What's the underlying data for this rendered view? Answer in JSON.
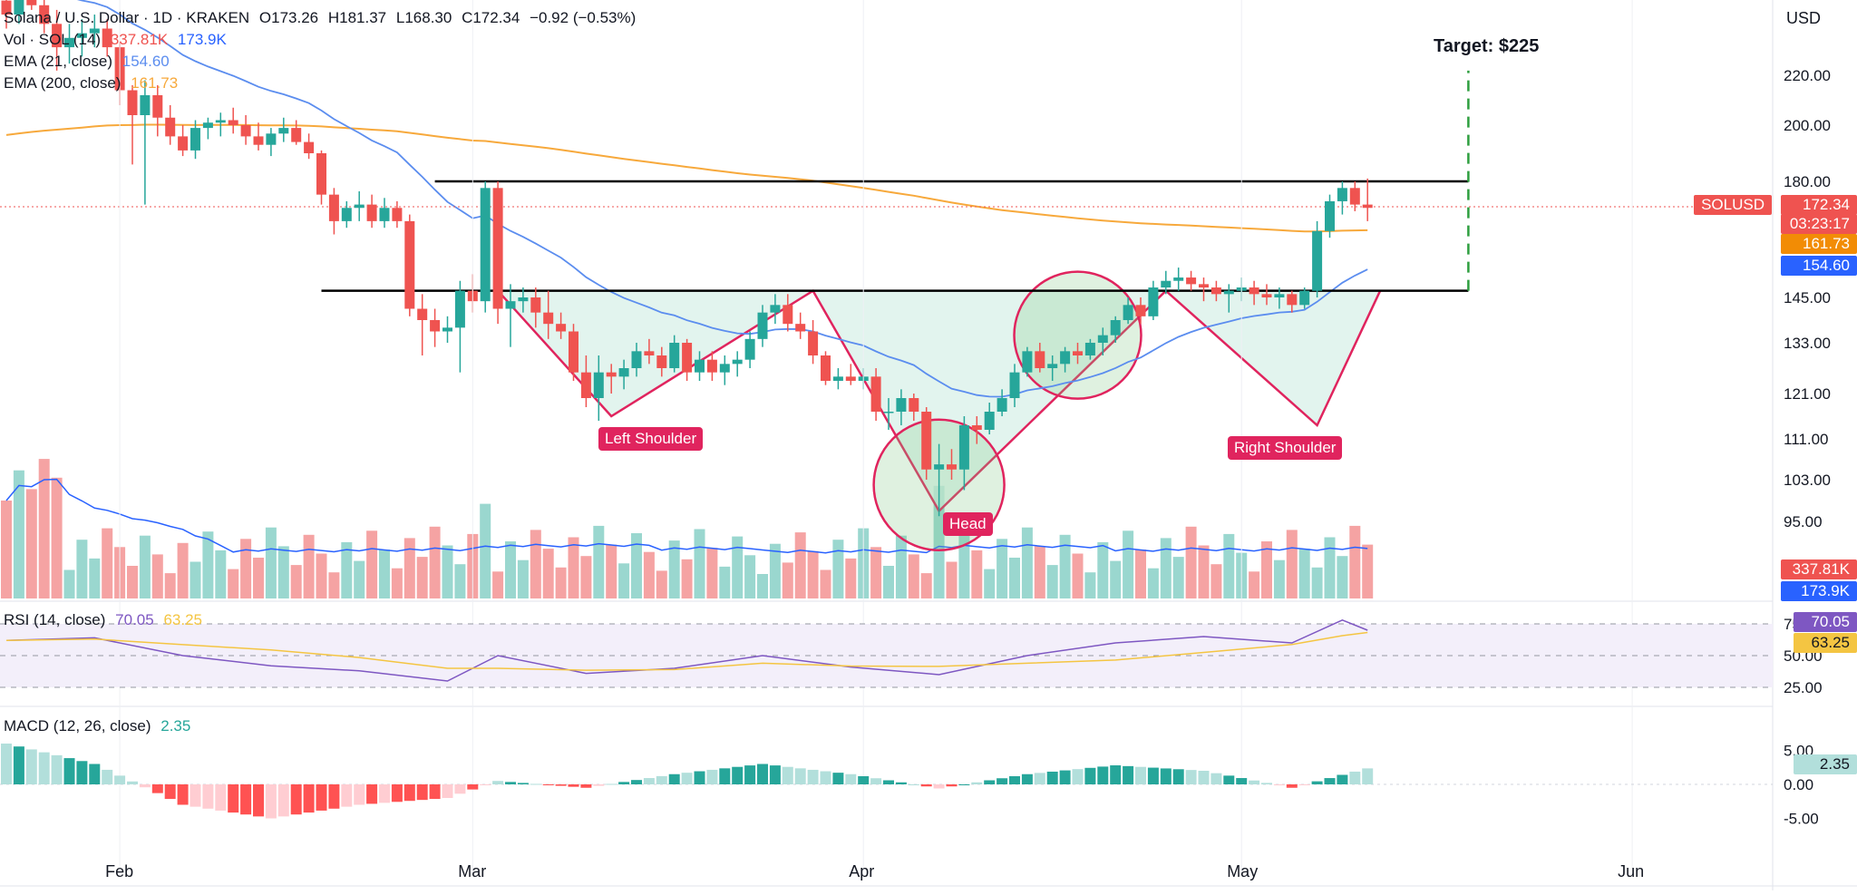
{
  "header": {
    "symbol_line": "Solana / U.S. Dollar · 1D · KRAKEN",
    "open": "O173.26",
    "high": "H181.37",
    "low": "L168.30",
    "close": "C172.34",
    "change": "−0.92 (−0.53%)",
    "vol_label": "Vol · SOL (14)",
    "vol_value1": "337.81K",
    "vol_value2": "173.9K",
    "ema21_label": "EMA (21, close)",
    "ema21_value": "154.60",
    "ema200_label": "EMA (200, close)",
    "ema200_value": "161.73",
    "currency": "USD"
  },
  "annotations": {
    "target": "Target: $225",
    "left_shoulder": "Left Shoulder",
    "head": "Head",
    "right_shoulder": "Right Shoulder"
  },
  "price_badges": {
    "symbol": "SOLUSD",
    "last": "172.34",
    "countdown": "03:23:17",
    "ema200": "161.73",
    "ema21": "154.60",
    "vol": "337.81K",
    "vol_ma": "173.9K"
  },
  "rsi": {
    "label": "RSI (14, close)",
    "value": "70.05",
    "ma": "63.25"
  },
  "macd": {
    "label": "MACD (12, 26, close)",
    "value": "2.35"
  },
  "colors": {
    "up": "#26a69a",
    "down": "#ef5350",
    "ema21": "#5b8def",
    "ema200": "#f7a93c",
    "pattern_fill": "#d6efe7",
    "pattern_line": "#e0245e",
    "rsi": "#7e57c2",
    "rsi_ma": "#f4c542"
  },
  "chart_data": {
    "type": "line",
    "title": "Solana / U.S. Dollar · 1D · KRAKEN",
    "x_ticks": [
      "Feb",
      "Mar",
      "Apr",
      "May",
      "Jun"
    ],
    "y_ticks": [
      95,
      103,
      111,
      121,
      133,
      145,
      180,
      200,
      220
    ],
    "ylabel": "USD",
    "price_levels": {
      "neckline": 147,
      "resistance": 180,
      "target": 225
    },
    "pattern_points": [
      {
        "name": "neck-start",
        "date": "2025-03-03",
        "price": 147
      },
      {
        "name": "left-shoulder",
        "date": "2025-03-12",
        "price": 116
      },
      {
        "name": "shoulder-peak",
        "date": "2025-03-28",
        "price": 147
      },
      {
        "name": "head",
        "date": "2025-04-07",
        "price": 97
      },
      {
        "name": "neck-mid",
        "date": "2025-04-25",
        "price": 147
      },
      {
        "name": "right-shoulder",
        "date": "2025-05-07",
        "price": 114
      },
      {
        "name": "neck-end",
        "date": "2025-05-12",
        "price": 147
      }
    ],
    "candles": [
      {
        "d": "2025-01-23",
        "o": 252,
        "h": 258,
        "l": 240,
        "c": 246
      },
      {
        "d": "2025-01-24",
        "o": 246,
        "h": 260,
        "l": 242,
        "c": 254
      },
      {
        "d": "2025-01-25",
        "o": 254,
        "h": 262,
        "l": 248,
        "c": 250
      },
      {
        "d": "2025-01-26",
        "o": 250,
        "h": 255,
        "l": 238,
        "c": 242
      },
      {
        "d": "2025-01-27",
        "o": 242,
        "h": 248,
        "l": 222,
        "c": 232
      },
      {
        "d": "2025-01-28",
        "o": 232,
        "h": 242,
        "l": 225,
        "c": 236
      },
      {
        "d": "2025-01-29",
        "o": 236,
        "h": 244,
        "l": 228,
        "c": 238
      },
      {
        "d": "2025-01-30",
        "o": 238,
        "h": 246,
        "l": 232,
        "c": 240
      },
      {
        "d": "2025-01-31",
        "o": 240,
        "h": 244,
        "l": 228,
        "c": 232
      },
      {
        "d": "2025-02-01",
        "o": 232,
        "h": 234,
        "l": 208,
        "c": 214
      },
      {
        "d": "2025-02-02",
        "o": 214,
        "h": 216,
        "l": 186,
        "c": 204
      },
      {
        "d": "2025-02-03",
        "o": 204,
        "h": 218,
        "l": 173,
        "c": 212
      },
      {
        "d": "2025-02-04",
        "o": 212,
        "h": 216,
        "l": 196,
        "c": 203
      },
      {
        "d": "2025-02-05",
        "o": 203,
        "h": 208,
        "l": 193,
        "c": 196
      },
      {
        "d": "2025-02-06",
        "o": 196,
        "h": 200,
        "l": 189,
        "c": 191
      },
      {
        "d": "2025-02-07",
        "o": 191,
        "h": 202,
        "l": 188,
        "c": 199
      },
      {
        "d": "2025-02-08",
        "o": 199,
        "h": 203,
        "l": 195,
        "c": 201
      },
      {
        "d": "2025-02-09",
        "o": 201,
        "h": 205,
        "l": 196,
        "c": 202
      },
      {
        "d": "2025-02-10",
        "o": 202,
        "h": 207,
        "l": 197,
        "c": 200
      },
      {
        "d": "2025-02-11",
        "o": 200,
        "h": 204,
        "l": 193,
        "c": 196
      },
      {
        "d": "2025-02-12",
        "o": 196,
        "h": 201,
        "l": 191,
        "c": 193
      },
      {
        "d": "2025-02-13",
        "o": 193,
        "h": 199,
        "l": 189,
        "c": 197
      },
      {
        "d": "2025-02-14",
        "o": 197,
        "h": 203,
        "l": 194,
        "c": 199
      },
      {
        "d": "2025-02-15",
        "o": 199,
        "h": 202,
        "l": 193,
        "c": 194
      },
      {
        "d": "2025-02-16",
        "o": 194,
        "h": 197,
        "l": 188,
        "c": 190
      },
      {
        "d": "2025-02-17",
        "o": 190,
        "h": 191,
        "l": 173,
        "c": 176
      },
      {
        "d": "2025-02-18",
        "o": 176,
        "h": 178,
        "l": 164,
        "c": 168
      },
      {
        "d": "2025-02-19",
        "o": 168,
        "h": 174,
        "l": 166,
        "c": 172
      },
      {
        "d": "2025-02-20",
        "o": 172,
        "h": 177,
        "l": 168,
        "c": 173
      },
      {
        "d": "2025-02-21",
        "o": 173,
        "h": 176,
        "l": 166,
        "c": 168
      },
      {
        "d": "2025-02-22",
        "o": 168,
        "h": 175,
        "l": 166,
        "c": 172
      },
      {
        "d": "2025-02-23",
        "o": 172,
        "h": 174,
        "l": 166,
        "c": 168
      },
      {
        "d": "2025-02-24",
        "o": 168,
        "h": 170,
        "l": 140,
        "c": 142
      },
      {
        "d": "2025-02-25",
        "o": 142,
        "h": 146,
        "l": 130,
        "c": 139
      },
      {
        "d": "2025-02-26",
        "o": 139,
        "h": 142,
        "l": 132,
        "c": 136
      },
      {
        "d": "2025-02-27",
        "o": 136,
        "h": 140,
        "l": 133,
        "c": 137
      },
      {
        "d": "2025-02-28",
        "o": 137,
        "h": 150,
        "l": 126,
        "c": 147
      },
      {
        "d": "2025-03-01",
        "o": 147,
        "h": 152,
        "l": 141,
        "c": 144
      },
      {
        "d": "2025-03-02",
        "o": 144,
        "h": 180,
        "l": 141,
        "c": 178
      },
      {
        "d": "2025-03-03",
        "o": 178,
        "h": 180,
        "l": 138,
        "c": 142
      },
      {
        "d": "2025-03-04",
        "o": 142,
        "h": 149,
        "l": 132,
        "c": 144
      },
      {
        "d": "2025-03-05",
        "o": 144,
        "h": 148,
        "l": 141,
        "c": 145
      },
      {
        "d": "2025-03-06",
        "o": 145,
        "h": 148,
        "l": 137,
        "c": 141
      },
      {
        "d": "2025-03-07",
        "o": 141,
        "h": 147,
        "l": 134,
        "c": 138
      },
      {
        "d": "2025-03-08",
        "o": 138,
        "h": 141,
        "l": 134,
        "c": 136
      },
      {
        "d": "2025-03-09",
        "o": 136,
        "h": 138,
        "l": 124,
        "c": 126
      },
      {
        "d": "2025-03-10",
        "o": 126,
        "h": 130,
        "l": 118,
        "c": 120
      },
      {
        "d": "2025-03-11",
        "o": 120,
        "h": 130,
        "l": 115,
        "c": 126
      },
      {
        "d": "2025-03-12",
        "o": 126,
        "h": 128,
        "l": 121,
        "c": 125
      },
      {
        "d": "2025-03-13",
        "o": 125,
        "h": 129,
        "l": 122,
        "c": 127
      },
      {
        "d": "2025-03-14",
        "o": 127,
        "h": 133,
        "l": 125,
        "c": 131
      },
      {
        "d": "2025-03-15",
        "o": 131,
        "h": 134,
        "l": 128,
        "c": 130
      },
      {
        "d": "2025-03-16",
        "o": 130,
        "h": 132,
        "l": 125,
        "c": 127
      },
      {
        "d": "2025-03-17",
        "o": 127,
        "h": 135,
        "l": 126,
        "c": 133
      },
      {
        "d": "2025-03-18",
        "o": 133,
        "h": 134,
        "l": 124,
        "c": 126
      },
      {
        "d": "2025-03-19",
        "o": 126,
        "h": 131,
        "l": 124,
        "c": 129
      },
      {
        "d": "2025-03-20",
        "o": 129,
        "h": 131,
        "l": 124,
        "c": 126
      },
      {
        "d": "2025-03-21",
        "o": 126,
        "h": 130,
        "l": 123,
        "c": 128
      },
      {
        "d": "2025-03-22",
        "o": 128,
        "h": 131,
        "l": 125,
        "c": 129
      },
      {
        "d": "2025-03-23",
        "o": 129,
        "h": 136,
        "l": 127,
        "c": 134
      },
      {
        "d": "2025-03-24",
        "o": 134,
        "h": 143,
        "l": 132,
        "c": 141
      },
      {
        "d": "2025-03-25",
        "o": 141,
        "h": 146,
        "l": 138,
        "c": 143
      },
      {
        "d": "2025-03-26",
        "o": 143,
        "h": 146,
        "l": 136,
        "c": 138
      },
      {
        "d": "2025-03-27",
        "o": 138,
        "h": 141,
        "l": 134,
        "c": 136
      },
      {
        "d": "2025-03-28",
        "o": 136,
        "h": 139,
        "l": 128,
        "c": 130
      },
      {
        "d": "2025-03-29",
        "o": 130,
        "h": 131,
        "l": 123,
        "c": 124
      },
      {
        "d": "2025-03-30",
        "o": 124,
        "h": 127,
        "l": 122,
        "c": 125
      },
      {
        "d": "2025-03-31",
        "o": 125,
        "h": 128,
        "l": 123,
        "c": 124
      },
      {
        "d": "2025-04-01",
        "o": 124,
        "h": 127,
        "l": 122,
        "c": 125
      },
      {
        "d": "2025-04-02",
        "o": 125,
        "h": 127,
        "l": 115,
        "c": 117
      },
      {
        "d": "2025-04-03",
        "o": 117,
        "h": 120,
        "l": 113,
        "c": 117
      },
      {
        "d": "2025-04-04",
        "o": 117,
        "h": 122,
        "l": 114,
        "c": 120
      },
      {
        "d": "2025-04-05",
        "o": 120,
        "h": 121,
        "l": 115,
        "c": 117
      },
      {
        "d": "2025-04-06",
        "o": 117,
        "h": 118,
        "l": 103,
        "c": 105
      },
      {
        "d": "2025-04-07",
        "o": 105,
        "h": 110,
        "l": 96,
        "c": 106
      },
      {
        "d": "2025-04-08",
        "o": 106,
        "h": 109,
        "l": 103,
        "c": 105
      },
      {
        "d": "2025-04-09",
        "o": 105,
        "h": 116,
        "l": 101,
        "c": 114
      },
      {
        "d": "2025-04-10",
        "o": 114,
        "h": 116,
        "l": 110,
        "c": 113
      },
      {
        "d": "2025-04-11",
        "o": 113,
        "h": 119,
        "l": 112,
        "c": 117
      },
      {
        "d": "2025-04-12",
        "o": 117,
        "h": 122,
        "l": 116,
        "c": 120
      },
      {
        "d": "2025-04-13",
        "o": 120,
        "h": 128,
        "l": 118,
        "c": 126
      },
      {
        "d": "2025-04-14",
        "o": 126,
        "h": 132,
        "l": 125,
        "c": 131
      },
      {
        "d": "2025-04-15",
        "o": 131,
        "h": 133,
        "l": 126,
        "c": 127
      },
      {
        "d": "2025-04-16",
        "o": 127,
        "h": 130,
        "l": 124,
        "c": 128
      },
      {
        "d": "2025-04-17",
        "o": 128,
        "h": 132,
        "l": 126,
        "c": 131
      },
      {
        "d": "2025-04-18",
        "o": 131,
        "h": 133,
        "l": 128,
        "c": 130
      },
      {
        "d": "2025-04-19",
        "o": 130,
        "h": 134,
        "l": 129,
        "c": 133
      },
      {
        "d": "2025-04-20",
        "o": 133,
        "h": 137,
        "l": 130,
        "c": 135
      },
      {
        "d": "2025-04-21",
        "o": 135,
        "h": 140,
        "l": 133,
        "c": 139
      },
      {
        "d": "2025-04-22",
        "o": 139,
        "h": 145,
        "l": 138,
        "c": 143
      },
      {
        "d": "2025-04-23",
        "o": 143,
        "h": 145,
        "l": 138,
        "c": 140
      },
      {
        "d": "2025-04-24",
        "o": 140,
        "h": 150,
        "l": 139,
        "c": 148
      },
      {
        "d": "2025-04-25",
        "o": 148,
        "h": 153,
        "l": 146,
        "c": 150
      },
      {
        "d": "2025-04-26",
        "o": 150,
        "h": 154,
        "l": 147,
        "c": 151
      },
      {
        "d": "2025-04-27",
        "o": 151,
        "h": 153,
        "l": 147,
        "c": 149
      },
      {
        "d": "2025-04-28",
        "o": 149,
        "h": 151,
        "l": 144,
        "c": 148
      },
      {
        "d": "2025-04-29",
        "o": 148,
        "h": 150,
        "l": 144,
        "c": 146
      },
      {
        "d": "2025-04-30",
        "o": 146,
        "h": 149,
        "l": 141,
        "c": 147
      },
      {
        "d": "2025-05-01",
        "o": 147,
        "h": 151,
        "l": 144,
        "c": 148
      },
      {
        "d": "2025-05-02",
        "o": 148,
        "h": 150,
        "l": 143,
        "c": 146
      },
      {
        "d": "2025-05-03",
        "o": 146,
        "h": 149,
        "l": 143,
        "c": 145
      },
      {
        "d": "2025-05-04",
        "o": 145,
        "h": 148,
        "l": 142,
        "c": 146
      },
      {
        "d": "2025-05-05",
        "o": 146,
        "h": 147,
        "l": 141,
        "c": 143
      },
      {
        "d": "2025-05-06",
        "o": 143,
        "h": 148,
        "l": 142,
        "c": 147
      },
      {
        "d": "2025-05-07",
        "o": 147,
        "h": 168,
        "l": 145,
        "c": 165
      },
      {
        "d": "2025-05-08",
        "o": 165,
        "h": 176,
        "l": 163,
        "c": 174
      },
      {
        "d": "2025-05-09",
        "o": 174,
        "h": 180,
        "l": 170,
        "c": 178
      },
      {
        "d": "2025-05-10",
        "o": 178,
        "h": 180,
        "l": 171,
        "c": 173
      },
      {
        "d": "2025-05-11",
        "o": 173,
        "h": 181,
        "l": 168,
        "c": 172
      }
    ],
    "volume_axis": [
      "337.81K",
      "173.9K"
    ],
    "rsi_ticks": [
      75,
      50,
      25
    ],
    "rsi_series": [
      {
        "d": "2025-01-23",
        "v": 62
      },
      {
        "d": "2025-01-30",
        "v": 64
      },
      {
        "d": "2025-02-06",
        "v": 50
      },
      {
        "d": "2025-02-13",
        "v": 42
      },
      {
        "d": "2025-02-20",
        "v": 38
      },
      {
        "d": "2025-02-27",
        "v": 30
      },
      {
        "d": "2025-03-03",
        "v": 50
      },
      {
        "d": "2025-03-10",
        "v": 36
      },
      {
        "d": "2025-03-17",
        "v": 40
      },
      {
        "d": "2025-03-24",
        "v": 50
      },
      {
        "d": "2025-03-31",
        "v": 41
      },
      {
        "d": "2025-04-07",
        "v": 35
      },
      {
        "d": "2025-04-14",
        "v": 50
      },
      {
        "d": "2025-04-21",
        "v": 60
      },
      {
        "d": "2025-04-28",
        "v": 65
      },
      {
        "d": "2025-05-05",
        "v": 60
      },
      {
        "d": "2025-05-09",
        "v": 78
      },
      {
        "d": "2025-05-11",
        "v": 70
      }
    ],
    "macd_ticks": [
      5.0,
      0.0,
      -5.0
    ],
    "macd_hist": [
      {
        "d": "2025-01-23",
        "v": 6
      },
      {
        "d": "2025-01-30",
        "v": 3
      },
      {
        "d": "2025-02-06",
        "v": -3
      },
      {
        "d": "2025-02-13",
        "v": -5
      },
      {
        "d": "2025-02-20",
        "v": -3
      },
      {
        "d": "2025-02-27",
        "v": -2
      },
      {
        "d": "2025-03-03",
        "v": 0.5
      },
      {
        "d": "2025-03-10",
        "v": -0.5
      },
      {
        "d": "2025-03-17",
        "v": 1.5
      },
      {
        "d": "2025-03-24",
        "v": 3
      },
      {
        "d": "2025-03-31",
        "v": 1.5
      },
      {
        "d": "2025-04-07",
        "v": -0.6
      },
      {
        "d": "2025-04-14",
        "v": 1.5
      },
      {
        "d": "2025-04-21",
        "v": 2.8
      },
      {
        "d": "2025-04-28",
        "v": 2
      },
      {
        "d": "2025-05-05",
        "v": -0.5
      },
      {
        "d": "2025-05-11",
        "v": 2.35
      }
    ]
  }
}
